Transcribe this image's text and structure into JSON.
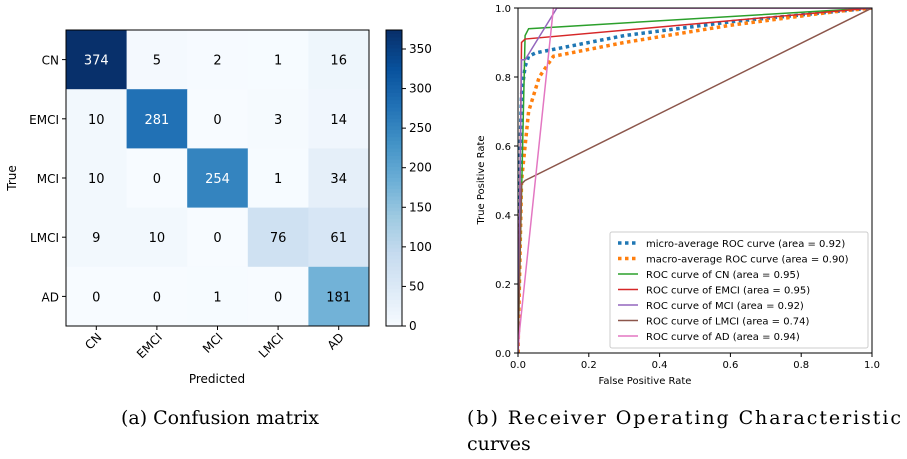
{
  "chart_data": [
    {
      "type": "heatmap",
      "caption": "(a) Confusion matrix",
      "xlabel": "Predicted",
      "ylabel": "True",
      "row_labels": [
        "CN",
        "EMCI",
        "MCI",
        "LMCI",
        "AD"
      ],
      "col_labels": [
        "CN",
        "EMCI",
        "MCI",
        "LMCI",
        "AD"
      ],
      "values": [
        [
          374,
          5,
          2,
          1,
          16
        ],
        [
          10,
          281,
          0,
          3,
          14
        ],
        [
          10,
          0,
          254,
          1,
          34
        ],
        [
          9,
          10,
          0,
          76,
          61
        ],
        [
          0,
          0,
          1,
          0,
          181
        ]
      ],
      "colorbar_ticks": [
        0,
        50,
        100,
        150,
        200,
        250,
        300,
        350
      ],
      "vmin": 0,
      "vmax": 374,
      "colormap": "Blues"
    },
    {
      "type": "line",
      "caption": "(b) Receiver Operating Characteristic curves",
      "xlabel": "False Positive Rate",
      "ylabel": "True Positive Rate",
      "xlim": [
        0,
        1
      ],
      "ylim": [
        0,
        1
      ],
      "xticks": [
        "0.0",
        "0.2",
        "0.4",
        "0.6",
        "0.8",
        "1.0"
      ],
      "yticks": [
        "0.0",
        "0.2",
        "0.4",
        "0.6",
        "0.8",
        "1.0"
      ],
      "legend_position": "bottom-right",
      "series": [
        {
          "name": "micro-average ROC curve (area = 0.92)",
          "color": "#1f77b4",
          "style": "dotted",
          "x": [
            0,
            0.005,
            0.01,
            0.02,
            0.03,
            0.05,
            0.1,
            0.3,
            0.6,
            0.9,
            1.0
          ],
          "y": [
            0,
            0.55,
            0.75,
            0.83,
            0.86,
            0.87,
            0.88,
            0.92,
            0.96,
            0.99,
            1.0
          ]
        },
        {
          "name": "macro-average ROC curve (area = 0.90)",
          "color": "#ff7f0e",
          "style": "dotted",
          "x": [
            0,
            0.01,
            0.03,
            0.06,
            0.1,
            0.3,
            0.6,
            0.9,
            1.0
          ],
          "y": [
            0,
            0.5,
            0.7,
            0.8,
            0.86,
            0.9,
            0.95,
            0.99,
            1.0
          ]
        },
        {
          "name": "ROC curve of CN (area = 0.95)",
          "color": "#2ca02c",
          "style": "solid",
          "x": [
            0,
            0.02,
            0.03,
            1.0
          ],
          "y": [
            0,
            0.92,
            0.94,
            1.0
          ]
        },
        {
          "name": "ROC curve of EMCI (area = 0.95)",
          "color": "#d62728",
          "style": "solid",
          "x": [
            0,
            0.01,
            0.02,
            1.0
          ],
          "y": [
            0,
            0.9,
            0.91,
            1.0
          ]
        },
        {
          "name": "ROC curve of MCI (area = 0.92)",
          "color": "#9467bd",
          "style": "solid",
          "x": [
            0,
            0.01,
            0.02,
            0.11,
            1.0
          ],
          "y": [
            0,
            0.85,
            0.85,
            1.0,
            1.0
          ]
        },
        {
          "name": "ROC curve of LMCI (area = 0.74)",
          "color": "#8c564b",
          "style": "solid",
          "x": [
            0,
            0.01,
            0.02,
            1.0
          ],
          "y": [
            0,
            0.49,
            0.5,
            1.0
          ]
        },
        {
          "name": "ROC curve of AD (area = 0.94)",
          "color": "#e377c2",
          "style": "solid",
          "x": [
            0,
            0.005,
            0.1,
            1.0
          ],
          "y": [
            0,
            0.07,
            1.0,
            1.0
          ]
        }
      ]
    }
  ]
}
